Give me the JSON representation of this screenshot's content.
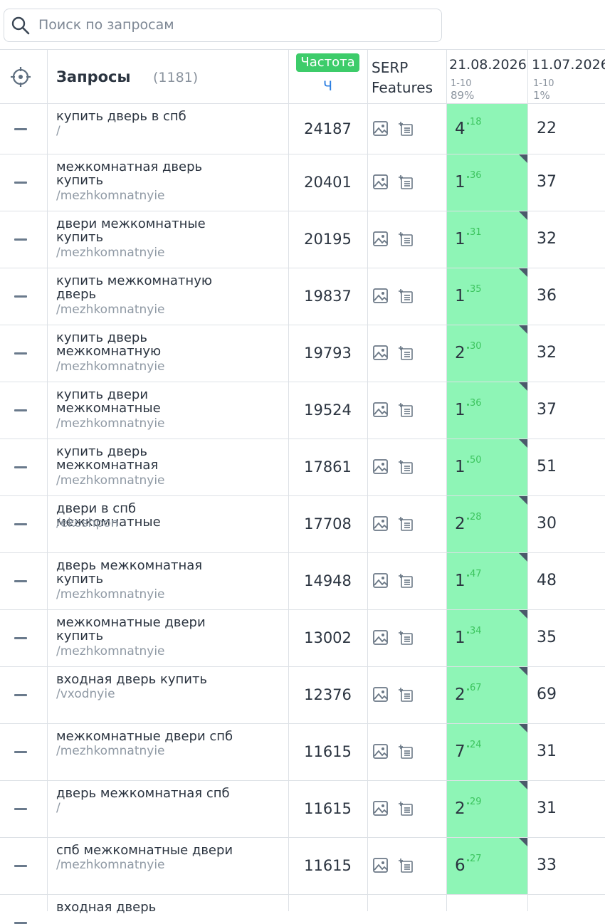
{
  "search": {
    "placeholder": "Поиск по запросам"
  },
  "header": {
    "title": "Запросы",
    "count": "(1181)",
    "frequency_badge": "Частота",
    "frequency_sub": "Ч",
    "serp_line1": "SERP",
    "serp_line2": "Features",
    "dates": [
      {
        "date": "21.08.2026",
        "range": "1-10",
        "share": "89%"
      },
      {
        "date": "11.07.2026",
        "range": "1-10",
        "share": "1%"
      }
    ]
  },
  "table": {
    "rows": [
      {
        "query": "купить дверь в спб",
        "url": "/",
        "frequency": 24187,
        "position": 4,
        "delta": 18,
        "previous": 22
      },
      {
        "query": "межкомнатная дверь купить",
        "url": "/mezhkomnatnyie",
        "frequency": 20401,
        "position": 1,
        "delta": 36,
        "previous": 37
      },
      {
        "query": "двери межкомнатные купить",
        "url": "/mezhkomnatnyie",
        "frequency": 20195,
        "position": 1,
        "delta": 31,
        "previous": 32
      },
      {
        "query": "купить межкомнатную дверь",
        "url": "/mezhkomnatnyie",
        "frequency": 19837,
        "position": 1,
        "delta": 35,
        "previous": 36
      },
      {
        "query": "купить дверь межкомнатную",
        "url": "/mezhkomnatnyie",
        "frequency": 19793,
        "position": 2,
        "delta": 30,
        "previous": 32
      },
      {
        "query": "купить двери межкомнатные",
        "url": "/mezhkomnatnyie",
        "frequency": 19524,
        "position": 1,
        "delta": 36,
        "previous": 37
      },
      {
        "query": "купить дверь межкомнатная",
        "url": "/mezhkomnatnyie",
        "frequency": 17861,
        "position": 1,
        "delta": 50,
        "previous": 51
      },
      {
        "query": "двери в спб межкомнатные",
        "url": "/ekoshpon",
        "frequency": 17708,
        "position": 2,
        "delta": 28,
        "previous": 30
      },
      {
        "query": "дверь межкомнатная купить",
        "url": "/mezhkomnatnyie",
        "frequency": 14948,
        "position": 1,
        "delta": 47,
        "previous": 48
      },
      {
        "query": "межкомнатные двери купить",
        "url": "/mezhkomnatnyie",
        "frequency": 13002,
        "position": 1,
        "delta": 34,
        "previous": 35
      },
      {
        "query": "входная дверь купить",
        "url": "/vxodnyie",
        "frequency": 12376,
        "position": 2,
        "delta": 67,
        "previous": 69
      },
      {
        "query": "межкомнатные двери спб",
        "url": "/mezhkomnatnyie",
        "frequency": 11615,
        "position": 7,
        "delta": 24,
        "previous": 31
      },
      {
        "query": "дверь межкомнатная спб",
        "url": "/",
        "frequency": 11615,
        "position": 2,
        "delta": 29,
        "previous": 31
      },
      {
        "query": "спб межкомнатные двери",
        "url": "/mezhkomnatnyie",
        "frequency": 11615,
        "position": 6,
        "delta": 27,
        "previous": 33
      },
      {
        "query": "входная дверь"
      }
    ]
  }
}
